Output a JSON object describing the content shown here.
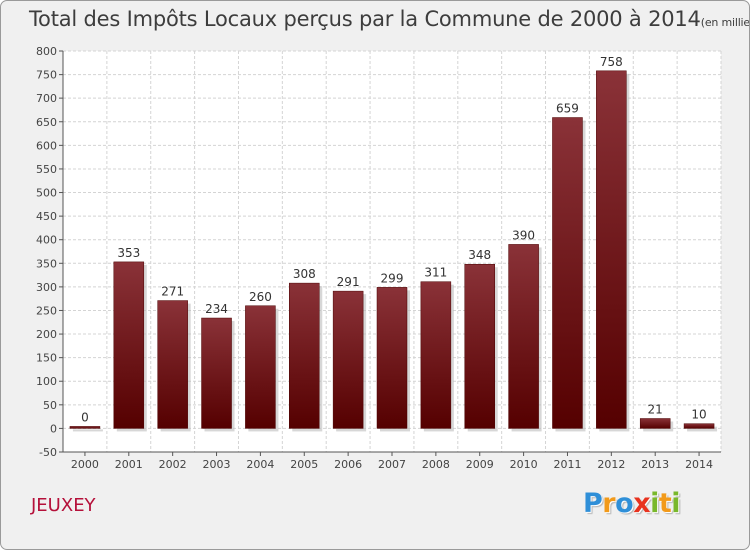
{
  "title": "Total des Impôts Locaux perçus par la Commune de 2000 à 2014",
  "unit": "(en milliers d'€)",
  "commune": "JEUXEY",
  "logo": {
    "letters": [
      {
        "ch": "P",
        "color": "#2f8fd8"
      },
      {
        "ch": "r",
        "color": "#f29a1a"
      },
      {
        "ch": "o",
        "color": "#2f8fd8"
      },
      {
        "ch": "x",
        "color": "#e8321e"
      },
      {
        "ch": "i",
        "color": "#79b82b"
      },
      {
        "ch": "t",
        "color": "#f29a1a"
      },
      {
        "ch": "i",
        "color": "#79b82b"
      }
    ]
  },
  "chart_data": {
    "type": "bar",
    "title": "Total des Impôts Locaux perçus par la Commune de 2000 à 2014",
    "xlabel": "",
    "ylabel": "en milliers d'€",
    "categories": [
      "2000",
      "2001",
      "2002",
      "2003",
      "2004",
      "2005",
      "2006",
      "2007",
      "2008",
      "2009",
      "2010",
      "2011",
      "2012",
      "2013",
      "2014"
    ],
    "values": [
      0,
      353,
      271,
      234,
      260,
      308,
      291,
      299,
      311,
      348,
      390,
      659,
      758,
      21,
      10
    ],
    "ylim": [
      -50,
      800
    ],
    "yticks": [
      -50,
      0,
      50,
      100,
      150,
      200,
      250,
      300,
      350,
      400,
      450,
      500,
      550,
      600,
      650,
      700,
      750,
      800
    ],
    "grid": true,
    "bar_color_top": "#8a3238",
    "bar_color_bottom": "#550000"
  }
}
